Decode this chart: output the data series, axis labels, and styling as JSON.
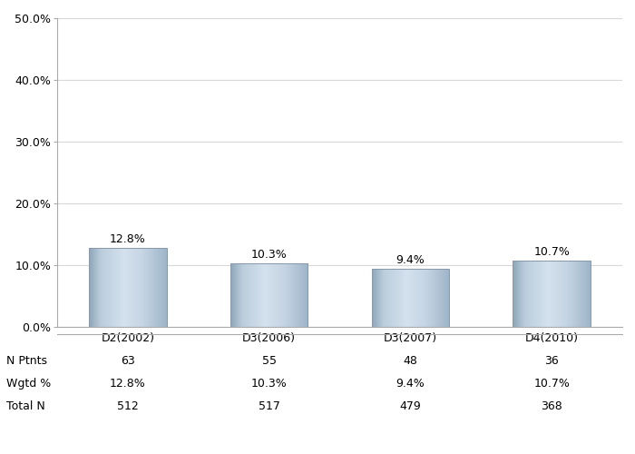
{
  "categories": [
    "D2(2002)",
    "D3(2006)",
    "D3(2007)",
    "D4(2010)"
  ],
  "values": [
    12.8,
    10.3,
    9.4,
    10.7
  ],
  "n_ptnts": [
    63,
    55,
    48,
    36
  ],
  "wgtd_pct": [
    "12.8%",
    "10.3%",
    "9.4%",
    "10.7%"
  ],
  "total_n": [
    512,
    517,
    479,
    368
  ],
  "ylim": [
    0,
    50
  ],
  "yticks": [
    0,
    10,
    20,
    30,
    40,
    50
  ],
  "ytick_labels": [
    "0.0%",
    "10.0%",
    "20.0%",
    "30.0%",
    "40.0%",
    "50.0%"
  ],
  "background_color": "#ffffff",
  "grid_color": "#d8d8d8",
  "label_fontsize": 9,
  "tick_fontsize": 9,
  "table_fontsize": 9,
  "bar_width": 0.55,
  "table_rows": [
    "N Ptnts",
    "Wgtd %",
    "Total N"
  ]
}
